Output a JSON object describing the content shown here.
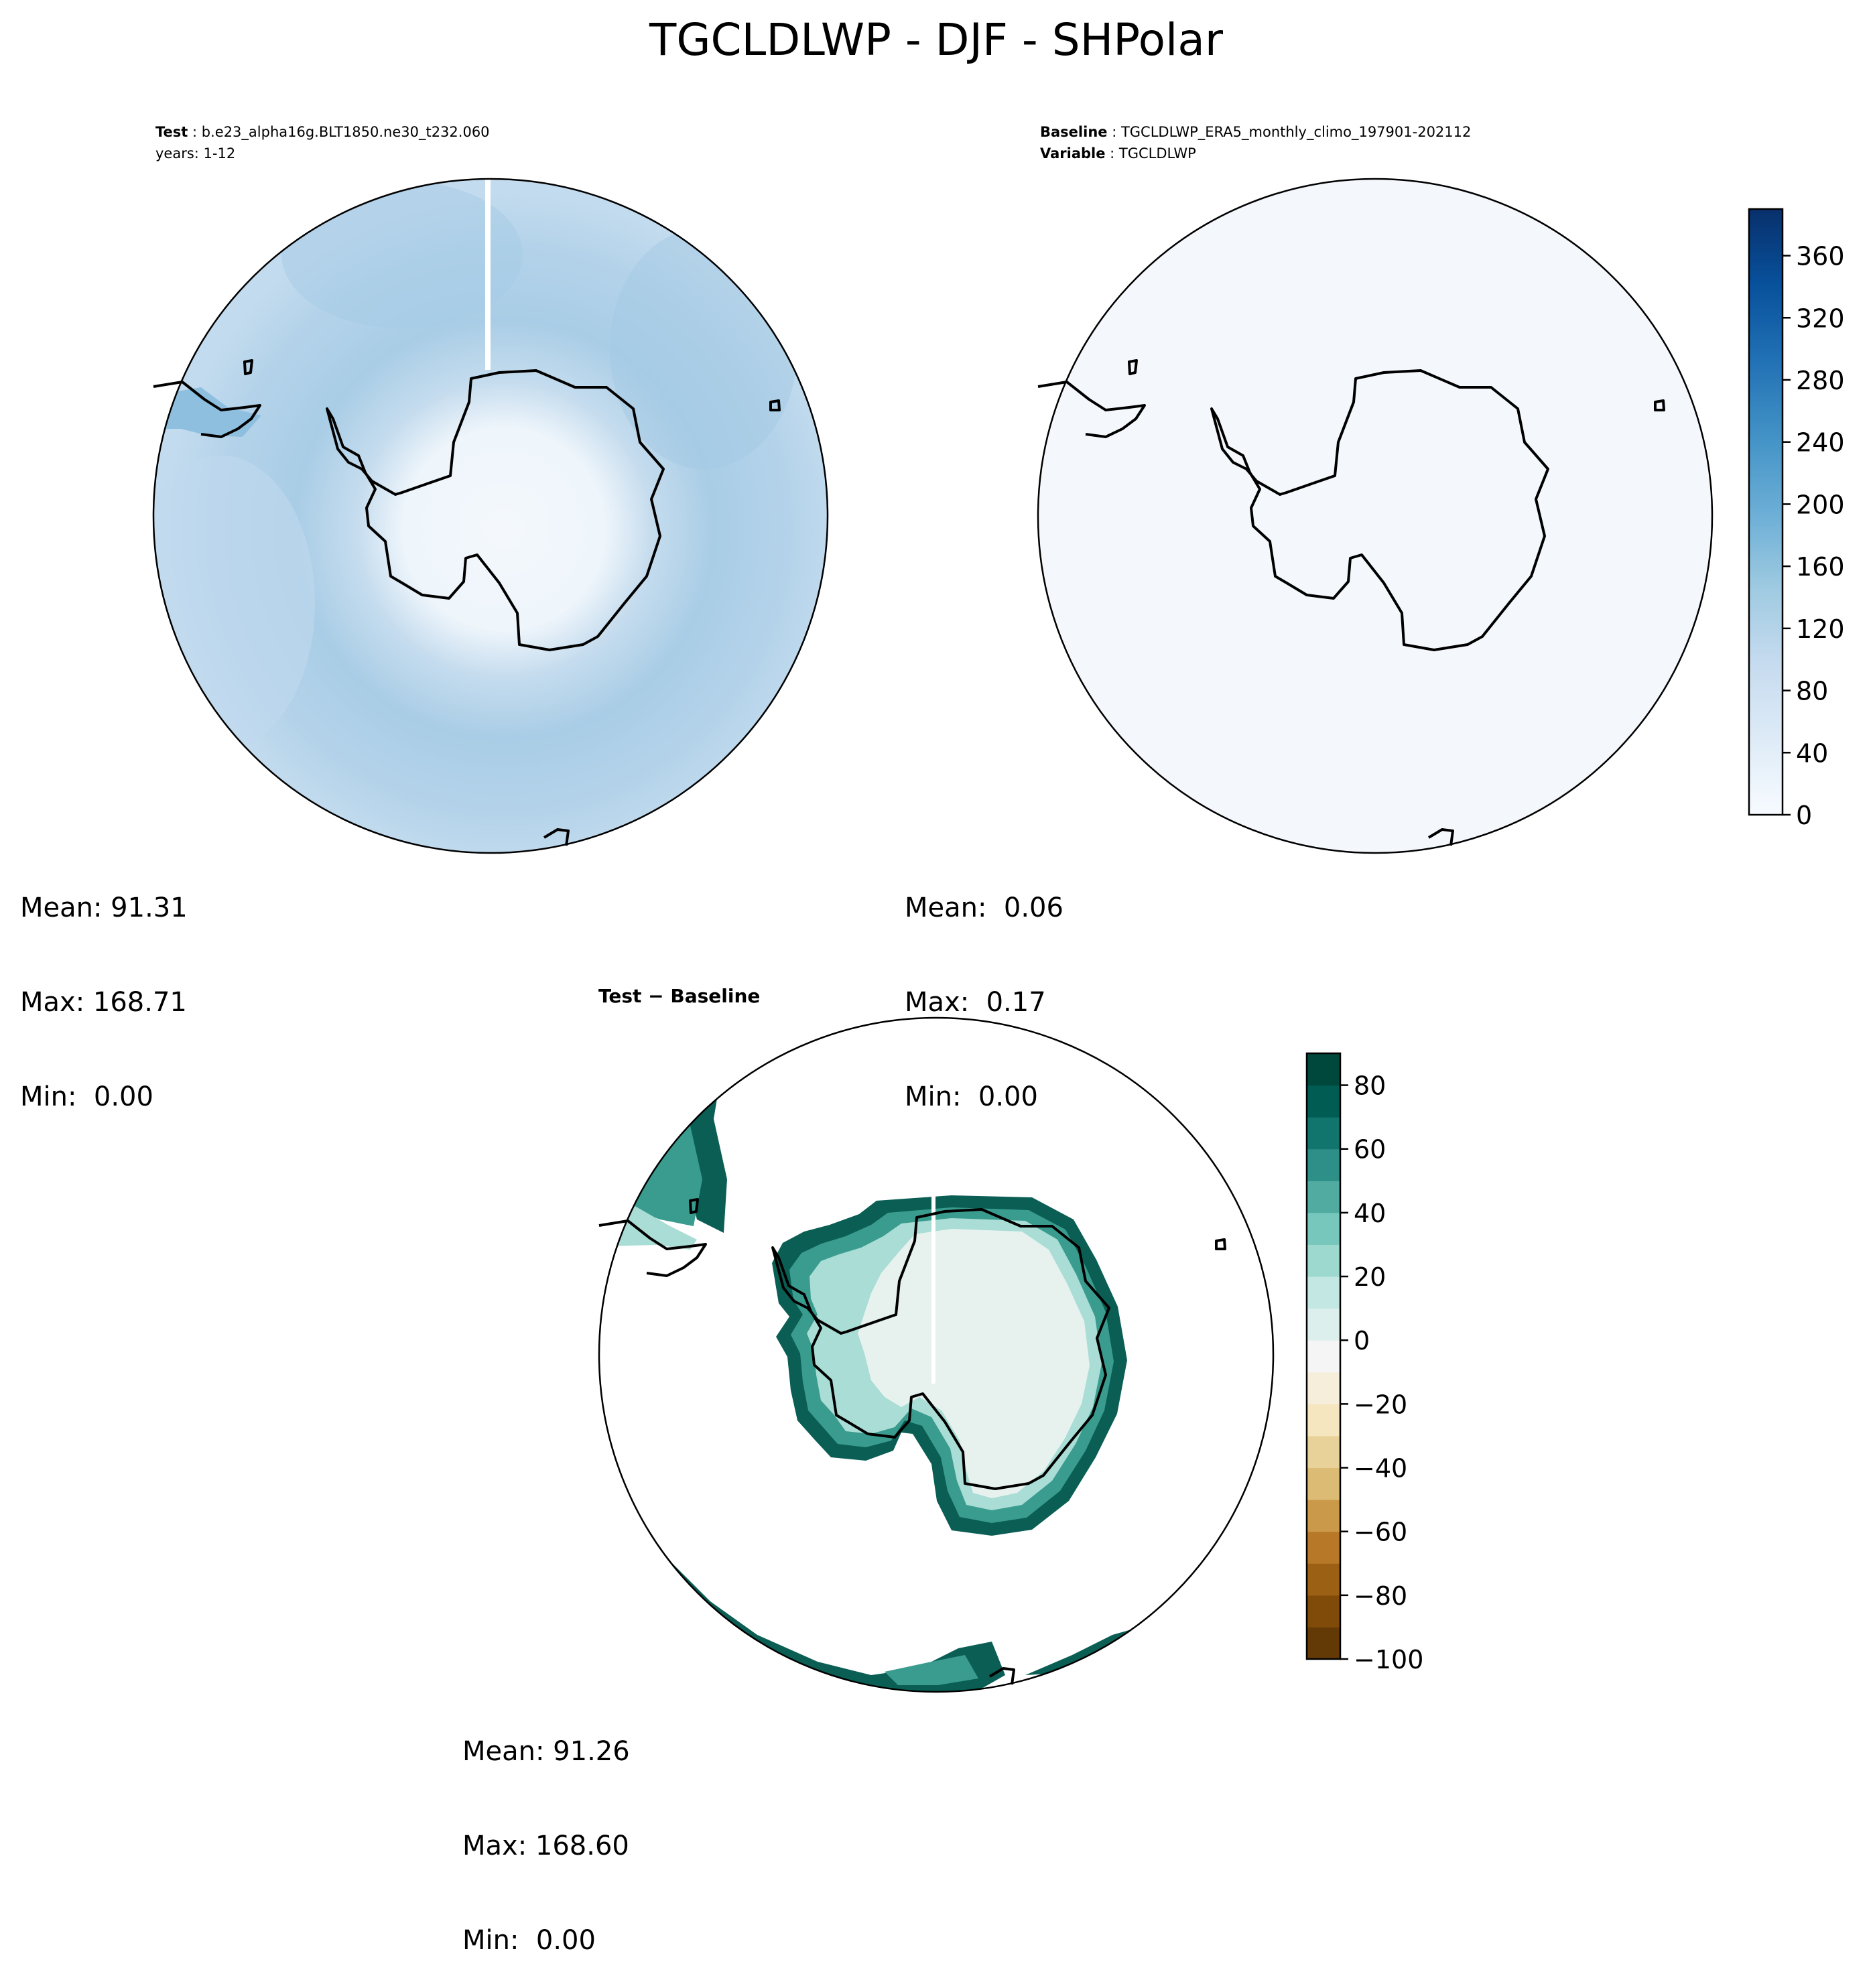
{
  "figure": {
    "title": "TGCLDLWP - DJF - SHPolar"
  },
  "panels": {
    "test": {
      "header_line1_label": "Test",
      "header_line1_value": "b.e23_alpha16g.BLT1850.ne30_t232.060",
      "header_line2_text": "years: 1-12",
      "stats": {
        "mean": "Mean: 91.31",
        "max": "Max: 168.71",
        "min": "Min:  0.00"
      }
    },
    "baseline": {
      "header_line1_label": "Baseline",
      "header_line1_value": "TGCLDLWP_ERA5_monthly_climo_197901-202112",
      "header_line2_label": "Variable",
      "header_line2_value": "TGCLDLWP",
      "stats": {
        "mean": "Mean:  0.06",
        "max": "Max:  0.17",
        "min": "Min:  0.00"
      }
    },
    "difference": {
      "header_label": "Test − Baseline",
      "stats": {
        "mean": "Mean: 91.26",
        "max": "Max: 168.60",
        "min": "Min:  0.00"
      }
    }
  },
  "colorbars": {
    "absolute": {
      "ticks": [
        "0",
        "40",
        "80",
        "120",
        "160",
        "200",
        "240",
        "280",
        "320",
        "360"
      ],
      "tick_values": [
        0,
        40,
        80,
        120,
        160,
        200,
        240,
        280,
        320,
        360
      ],
      "range": [
        0,
        390
      ],
      "colormap": "Blues",
      "colors": [
        "#f7fbff",
        "#deebf7",
        "#c6dbef",
        "#9ecae1",
        "#6baed6",
        "#4292c6",
        "#2171b5",
        "#08519c",
        "#08306b"
      ]
    },
    "difference": {
      "ticks": [
        "−100",
        "−80",
        "−60",
        "−40",
        "−20",
        "0",
        "20",
        "40",
        "60",
        "80"
      ],
      "tick_values": [
        -100,
        -80,
        -60,
        -40,
        -20,
        0,
        20,
        40,
        60,
        80
      ],
      "range": [
        -100,
        90
      ],
      "colormap": "BrBG",
      "colors": [
        "#543005",
        "#8c510a",
        "#bf812d",
        "#dfc27d",
        "#f6e8c3",
        "#f5f5f5",
        "#c7eae5",
        "#80cdc1",
        "#35978f",
        "#01665e",
        "#003c30"
      ]
    }
  }
}
